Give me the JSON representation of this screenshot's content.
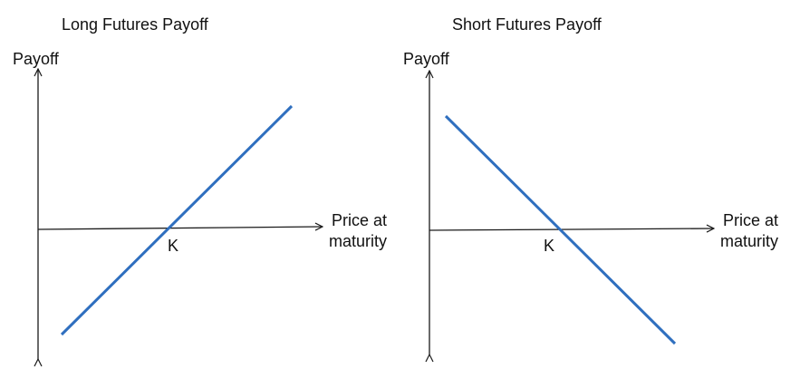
{
  "colors": {
    "axis": "#1a1a1a",
    "payoff_line": "#2f6fbf",
    "background": "#ffffff"
  },
  "diagrams": [
    {
      "title": "Long Futures Payoff",
      "y_axis_label": "Payoff",
      "x_axis_label_line1": "Price at",
      "x_axis_label_line2": "maturity",
      "strike_label": "K",
      "payoff_slope": "positive"
    },
    {
      "title": "Short Futures Payoff",
      "y_axis_label": "Payoff",
      "x_axis_label_line1": "Price at",
      "x_axis_label_line2": "maturity",
      "strike_label": "K",
      "payoff_slope": "negative"
    }
  ]
}
